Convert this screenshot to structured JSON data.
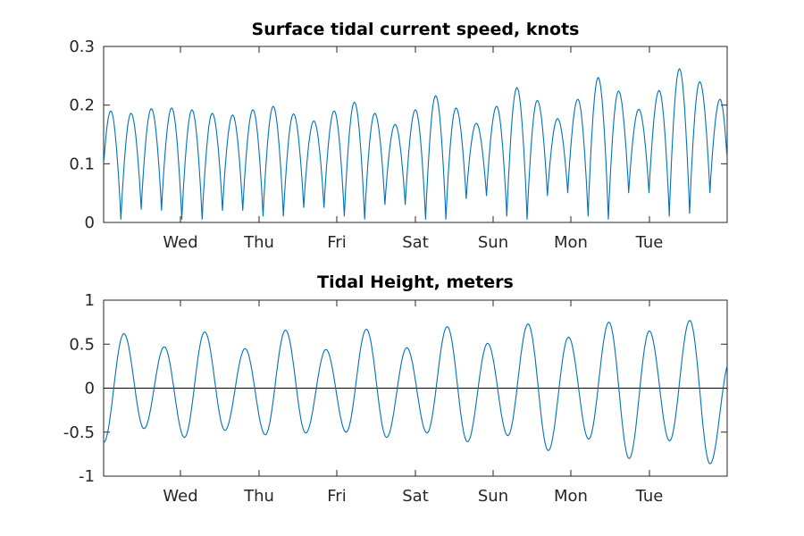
{
  "colors": {
    "series": "#0072BD",
    "axis": "#262626",
    "zero_line": "#000000"
  },
  "chart_data": [
    {
      "type": "line",
      "title": "Surface tidal current speed, knots",
      "xlabel": "",
      "ylabel": "",
      "xlim": [
        "Tue 00:00",
        "Wed 00:00 +7d"
      ],
      "x_tick_labels": [
        "Wed",
        "Thu",
        "Fri",
        "Sat",
        "Sun",
        "Mon",
        "Tue"
      ],
      "ylim": [
        0,
        0.3
      ],
      "y_ticks": [
        0,
        0.1,
        0.2,
        0.3
      ],
      "y_tick_labels": [
        "0",
        "0.1",
        "0.2",
        "0.3"
      ],
      "grid": false,
      "series": [
        {
          "description": "semi-diurnal ebb/flood speed peaks (knots), alternating with near-zero slack minima",
          "peaks": [
            0.19,
            0.186,
            0.194,
            0.195,
            0.192,
            0.186,
            0.183,
            0.192,
            0.198,
            0.185,
            0.173,
            0.19,
            0.205,
            0.186,
            0.167,
            0.192,
            0.216,
            0.195,
            0.169,
            0.198,
            0.23,
            0.208,
            0.177,
            0.21,
            0.247,
            0.224,
            0.193,
            0.225,
            0.262,
            0.24,
            0.21
          ],
          "minima": [
            0.005,
            0.022,
            0.02,
            0.005,
            0.005,
            0.02,
            0.02,
            0.01,
            0.01,
            0.025,
            0.025,
            0.01,
            0.005,
            0.03,
            0.03,
            0.005,
            0.005,
            0.04,
            0.045,
            0.01,
            0.005,
            0.045,
            0.05,
            0.01,
            0.005,
            0.05,
            0.05,
            0.01,
            0.015,
            0.05
          ]
        }
      ]
    },
    {
      "type": "line",
      "title": "Tidal Height, meters",
      "xlabel": "",
      "ylabel": "",
      "x_tick_labels": [
        "Wed",
        "Thu",
        "Fri",
        "Sat",
        "Sun",
        "Mon",
        "Tue"
      ],
      "ylim": [
        -1,
        1
      ],
      "y_ticks": [
        -1,
        -0.5,
        0,
        0.5,
        1
      ],
      "y_tick_labels": [
        "-1",
        "-0.5",
        "0",
        "0.5",
        "1"
      ],
      "grid": false,
      "reference_line": 0,
      "series": [
        {
          "description": "semi-diurnal tide alternating high and low waters (meters)",
          "extremes": [
            -0.62,
            0.62,
            -0.46,
            0.47,
            -0.56,
            0.64,
            -0.48,
            0.45,
            -0.53,
            0.66,
            -0.51,
            0.44,
            -0.5,
            0.67,
            -0.56,
            0.46,
            -0.51,
            0.7,
            -0.61,
            0.51,
            -0.54,
            0.73,
            -0.71,
            0.58,
            -0.58,
            0.75,
            -0.8,
            0.65,
            -0.6,
            0.77,
            -0.86,
            0.32
          ]
        }
      ]
    }
  ]
}
